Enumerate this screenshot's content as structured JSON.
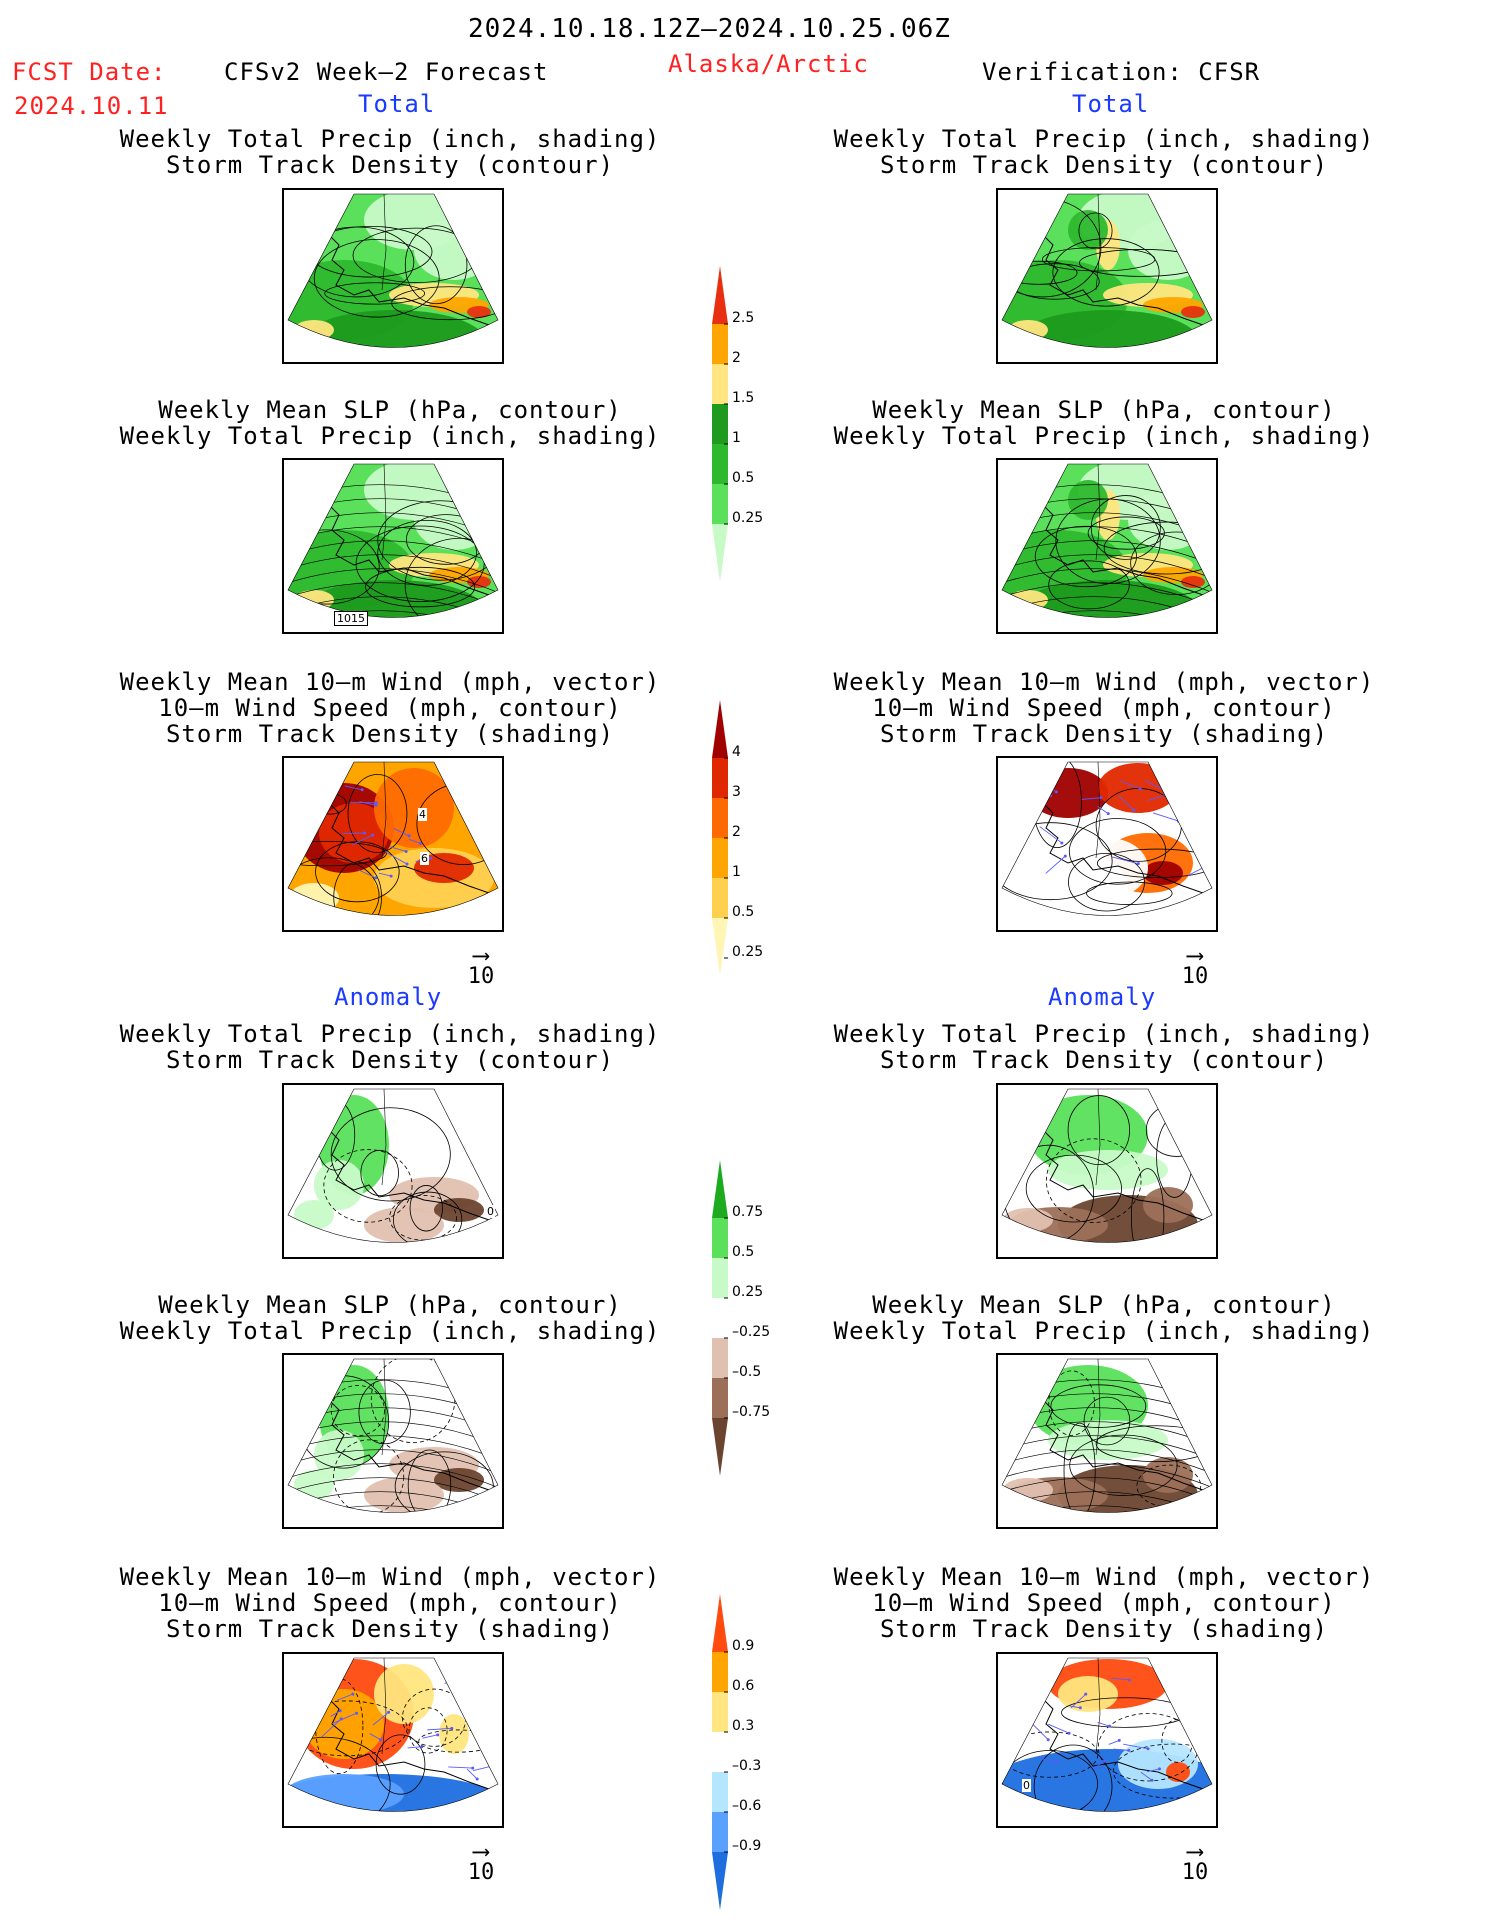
{
  "header": {
    "period": "2024.10.18.12Z–2024.10.25.06Z",
    "fcst_label": "FCST Date:",
    "fcst_date": "2024.10.11",
    "model": "CFSv2 Week–2 Forecast",
    "region": "Alaska/Arctic",
    "verification": "Verification: CFSR"
  },
  "sections": {
    "total": "Total",
    "anomaly": "Anomaly"
  },
  "captions": {
    "precip_storm": [
      "Weekly Total Precip (inch, shading)",
      "Storm Track Density (contour)"
    ],
    "slp_precip": [
      "Weekly Mean SLP (hPa, contour)",
      "Weekly Total Precip (inch, shading)"
    ],
    "wind": [
      "Weekly Mean 10–m Wind (mph, vector)",
      "10–m Wind Speed (mph, contour)",
      "Storm Track Density (shading)"
    ]
  },
  "vector_ref": "10",
  "contour_labels": {
    "slp_total_left": "1015",
    "wind_total_left_a": "4",
    "wind_total_left_b": "6",
    "wind_anom_right": "0",
    "precip_anom_left": "0"
  },
  "colors": {
    "precip_total": [
      "#c8fac8",
      "#5ae05a",
      "#2eb82e",
      "#1e9a1e",
      "#ffe680",
      "#ffa500",
      "#e83010"
    ],
    "storm_total": [
      "#fff5b4",
      "#ffd050",
      "#ffa500",
      "#ff6a00",
      "#e02800",
      "#a00000"
    ],
    "precip_anom": [
      "#6b4430",
      "#9c7058",
      "#e0c0b0",
      "#ffffff",
      "#c8fac8",
      "#5ae05a",
      "#1eaa1e"
    ],
    "storm_anom": [
      "#1e6ee0",
      "#5aa0ff",
      "#b4e6ff",
      "#ffffff",
      "#ffe680",
      "#ffa500",
      "#ff4a10"
    ]
  },
  "chart_data": [
    {
      "type": "colorbar",
      "name": "precip_total",
      "levels": [
        "0.25",
        "0.5",
        "1",
        "1.5",
        "2",
        "2.5"
      ]
    },
    {
      "type": "colorbar",
      "name": "storm_total",
      "levels": [
        "0.25",
        "0.5",
        "1",
        "2",
        "3",
        "4"
      ]
    },
    {
      "type": "colorbar",
      "name": "precip_anom",
      "levels": [
        "–0.75",
        "–0.5",
        "–0.25",
        "0.25",
        "0.5",
        "0.75"
      ]
    },
    {
      "type": "colorbar",
      "name": "storm_anom",
      "levels": [
        "–0.9",
        "–0.6",
        "–0.3",
        "0.3",
        "0.6",
        "0.9"
      ]
    }
  ]
}
